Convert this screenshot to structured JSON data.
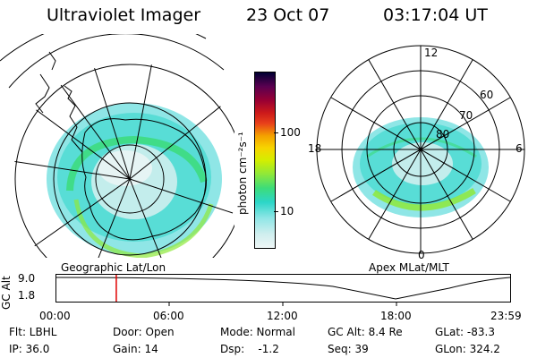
{
  "header": {
    "title": "Ultraviolet Imager",
    "date": "23 Oct 07",
    "time": "03:17:04 UT"
  },
  "left_map": {
    "caption": "Geographic Lat/Lon"
  },
  "right_map": {
    "caption": "Apex MLat/MLT",
    "mlt_labels": {
      "top": "12",
      "left": "18",
      "right": "6",
      "bottom": "0"
    },
    "lat_labels": [
      "60",
      "70",
      "80"
    ]
  },
  "colorbar": {
    "unit_label": "photon cm⁻²s⁻¹",
    "ticks": [
      "100",
      "10"
    ],
    "colors": [
      "#000033",
      "#5a0050",
      "#990033",
      "#cc1a1a",
      "#e8401a",
      "#f4a000",
      "#f7d400",
      "#d4ee00",
      "#8ee83a",
      "#3cdc7a",
      "#2cd6c8",
      "#8fe6e6",
      "#cfeeee",
      "#eef6f6"
    ]
  },
  "altitude_plot": {
    "ylabel": "GC Alt",
    "yticks": [
      "9.0",
      "1.8"
    ],
    "xticks": [
      "00:00",
      "06:00",
      "12:00",
      "18:00",
      "23:59"
    ],
    "marker_time_fraction": 0.132
  },
  "info": {
    "filter": "Flt: LBHL",
    "ip": "IP: 36.0",
    "door": "Door: Open",
    "gain": "Gain: 14",
    "mode": "Mode: Normal",
    "dsp": "Dsp:    -1.2",
    "gc_alt": "GC Alt: 8.4 Re",
    "seq": "Seq: 39",
    "glat": "GLat: -83.3",
    "glon": "GLon: 324.2"
  }
}
